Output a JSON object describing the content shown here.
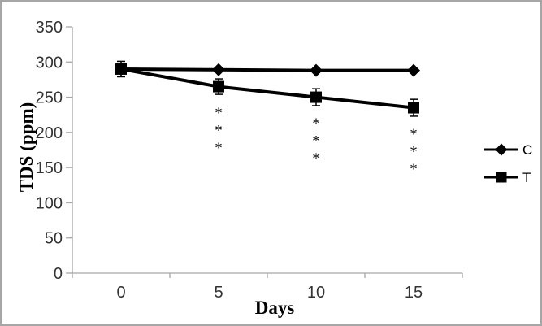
{
  "figure": {
    "background": "#ffffff",
    "border_color": "#a6a6a6"
  },
  "chart_data": {
    "type": "line",
    "title": "",
    "xlabel": "Days",
    "ylabel": "TDS (ppm)",
    "categories": [
      "0",
      "5",
      "10",
      "15"
    ],
    "x_values": [
      0,
      5,
      10,
      15
    ],
    "series": [
      {
        "name": "C",
        "marker": "diamond",
        "color": "#000000",
        "values": [
          290,
          289,
          288,
          288
        ],
        "errors": [
          0,
          0,
          0,
          0
        ]
      },
      {
        "name": "T",
        "marker": "square",
        "color": "#000000",
        "values": [
          290,
          265,
          250,
          235
        ],
        "errors": [
          11,
          11,
          12,
          12
        ]
      }
    ],
    "significance_markers": [
      {
        "category": "5",
        "category_index": 1,
        "series": "T",
        "symbols": [
          "*",
          "*",
          "*"
        ]
      },
      {
        "category": "10",
        "category_index": 2,
        "series": "T",
        "symbols": [
          "*",
          "*",
          "*"
        ]
      },
      {
        "category": "15",
        "category_index": 3,
        "series": "T",
        "symbols": [
          "*",
          "*",
          "*"
        ]
      }
    ],
    "ylim": [
      0,
      350
    ],
    "ytick_step": 50,
    "ytick_labels": [
      "0",
      "50",
      "100",
      "150",
      "200",
      "250",
      "300",
      "350"
    ],
    "grid": false,
    "legend_position": "right",
    "axis_color": "#a6a6a6",
    "text_color": "#333333",
    "series_color": "#000000"
  }
}
